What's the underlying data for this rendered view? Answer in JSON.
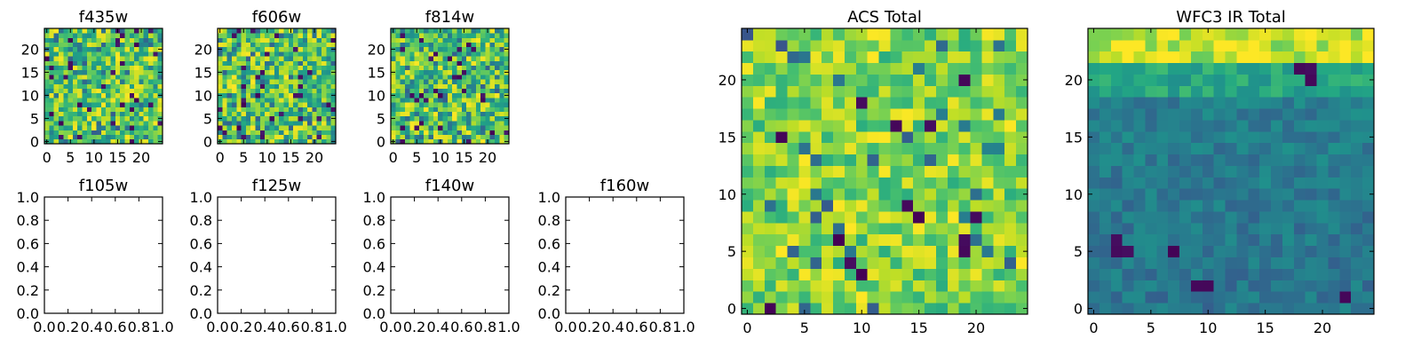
{
  "figure": {
    "background": "#ffffff",
    "colormap": "viridis"
  },
  "chart_data": [
    {
      "id": "f435w",
      "type": "heatmap",
      "title": "f435w",
      "xlim": [
        -0.5,
        24.5
      ],
      "ylim": [
        -0.5,
        24.5
      ],
      "xticks": [
        0,
        5,
        10,
        15,
        20
      ],
      "yticks": [
        0,
        5,
        10,
        15,
        20
      ],
      "xticklabels": [
        "0",
        "5",
        "10",
        "15",
        "20"
      ],
      "yticklabels": [
        "0",
        "5",
        "10",
        "15",
        "20"
      ],
      "grid": "off",
      "grid_size": [
        25,
        25
      ],
      "pattern": "noise",
      "seed": 11,
      "values_note": "25x25 pixel image, mostly green-yellow with scattered dark pixels"
    },
    {
      "id": "f606w",
      "type": "heatmap",
      "title": "f606w",
      "xlim": [
        -0.5,
        24.5
      ],
      "ylim": [
        -0.5,
        24.5
      ],
      "xticks": [
        0,
        5,
        10,
        15,
        20
      ],
      "yticks": [
        0,
        5,
        10,
        15,
        20
      ],
      "xticklabels": [
        "0",
        "5",
        "10",
        "15",
        "20"
      ],
      "yticklabels": [
        "0",
        "5",
        "10",
        "15",
        "20"
      ],
      "grid": "off",
      "grid_size": [
        25,
        25
      ],
      "pattern": "noise",
      "seed": 23,
      "values_note": "25x25 pixel image, noisy"
    },
    {
      "id": "f814w",
      "type": "heatmap",
      "title": "f814w",
      "xlim": [
        -0.5,
        24.5
      ],
      "ylim": [
        -0.5,
        24.5
      ],
      "xticks": [
        0,
        5,
        10,
        15,
        20
      ],
      "yticks": [
        0,
        5,
        10,
        15,
        20
      ],
      "xticklabels": [
        "0",
        "5",
        "10",
        "15",
        "20"
      ],
      "yticklabels": [
        "0",
        "5",
        "10",
        "15",
        "20"
      ],
      "grid": "off",
      "grid_size": [
        25,
        25
      ],
      "pattern": "noise",
      "seed": 37,
      "values_note": "25x25 pixel image, noisy"
    },
    {
      "id": "f105w",
      "type": "empty",
      "title": "f105w",
      "xlim": [
        0,
        1
      ],
      "ylim": [
        0,
        1
      ],
      "xticks": [
        0,
        0.2,
        0.4,
        0.6,
        0.8,
        1.0
      ],
      "yticks": [
        0,
        0.2,
        0.4,
        0.6,
        0.8,
        1.0
      ],
      "xticklabels": [
        "0.0",
        "0.2",
        "0.4",
        "0.6",
        "0.8",
        "1.0"
      ],
      "yticklabels": [
        "0.0",
        "0.2",
        "0.4",
        "0.6",
        "0.8",
        "1.0"
      ]
    },
    {
      "id": "f125w",
      "type": "empty",
      "title": "f125w",
      "xlim": [
        0,
        1
      ],
      "ylim": [
        0,
        1
      ],
      "xticks": [
        0,
        0.2,
        0.4,
        0.6,
        0.8,
        1.0
      ],
      "yticks": [
        0,
        0.2,
        0.4,
        0.6,
        0.8,
        1.0
      ],
      "xticklabels": [
        "0.0",
        "0.2",
        "0.4",
        "0.6",
        "0.8",
        "1.0"
      ],
      "yticklabels": [
        "0.0",
        "0.2",
        "0.4",
        "0.6",
        "0.8",
        "1.0"
      ]
    },
    {
      "id": "f140w",
      "type": "empty",
      "title": "f140w",
      "xlim": [
        0,
        1
      ],
      "ylim": [
        0,
        1
      ],
      "xticks": [
        0,
        0.2,
        0.4,
        0.6,
        0.8,
        1.0
      ],
      "yticks": [
        0,
        0.2,
        0.4,
        0.6,
        0.8,
        1.0
      ],
      "xticklabels": [
        "0.0",
        "0.2",
        "0.4",
        "0.6",
        "0.8",
        "1.0"
      ],
      "yticklabels": [
        "0.0",
        "0.2",
        "0.4",
        "0.6",
        "0.8",
        "1.0"
      ]
    },
    {
      "id": "f160w",
      "type": "empty",
      "title": "f160w",
      "xlim": [
        0,
        1
      ],
      "ylim": [
        0,
        1
      ],
      "xticks": [
        0,
        0.2,
        0.4,
        0.6,
        0.8,
        1.0
      ],
      "yticks": [
        0,
        0.2,
        0.4,
        0.6,
        0.8,
        1.0
      ],
      "xticklabels": [
        "0.0",
        "0.2",
        "0.4",
        "0.6",
        "0.8",
        "1.0"
      ],
      "yticklabels": [
        "0.0",
        "0.2",
        "0.4",
        "0.6",
        "0.8",
        "1.0"
      ]
    },
    {
      "id": "acs_total",
      "type": "heatmap",
      "title": "ACS Total",
      "xlim": [
        -0.5,
        24.5
      ],
      "ylim": [
        -0.5,
        24.5
      ],
      "xticks": [
        0,
        5,
        10,
        15,
        20
      ],
      "yticks": [
        0,
        5,
        10,
        15,
        20
      ],
      "xticklabels": [
        "0",
        "5",
        "10",
        "15",
        "20"
      ],
      "yticklabels": [
        "0",
        "5",
        "10",
        "15",
        "20"
      ],
      "grid": "off",
      "grid_size": [
        25,
        25
      ],
      "pattern": "acs",
      "seed": 53,
      "dark_pixels": [
        [
          2,
          0
        ],
        [
          9,
          4
        ],
        [
          10,
          3
        ],
        [
          8,
          6
        ],
        [
          15,
          8
        ],
        [
          20,
          8
        ],
        [
          14,
          9
        ],
        [
          19,
          6
        ],
        [
          19,
          5
        ],
        [
          3,
          15
        ],
        [
          13,
          16
        ],
        [
          10,
          18
        ],
        [
          16,
          16
        ],
        [
          19,
          20
        ]
      ],
      "values_note": "mostly bright green/yellow with scattered dark-purple pixels"
    },
    {
      "id": "wfc3_ir_total",
      "type": "heatmap",
      "title": "WFC3 IR Total",
      "xlim": [
        -0.5,
        24.5
      ],
      "ylim": [
        -0.5,
        24.5
      ],
      "xticks": [
        0,
        5,
        10,
        15,
        20
      ],
      "yticks": [
        0,
        5,
        10,
        15,
        20
      ],
      "xticklabels": [
        "0",
        "5",
        "10",
        "15",
        "20"
      ],
      "yticklabels": [
        "0",
        "5",
        "10",
        "15",
        "20"
      ],
      "grid": "off",
      "grid_size": [
        25,
        25
      ],
      "pattern": "ir",
      "seed": 71,
      "dark_pixels": [
        [
          2,
          5
        ],
        [
          3,
          5
        ],
        [
          2,
          6
        ],
        [
          10,
          2
        ],
        [
          9,
          2
        ],
        [
          18,
          21
        ],
        [
          19,
          21
        ],
        [
          19,
          20
        ],
        [
          7,
          5
        ],
        [
          22,
          1
        ]
      ],
      "values_note": "bright yellow band at top, teal/blue elsewhere, dark blobs"
    }
  ]
}
